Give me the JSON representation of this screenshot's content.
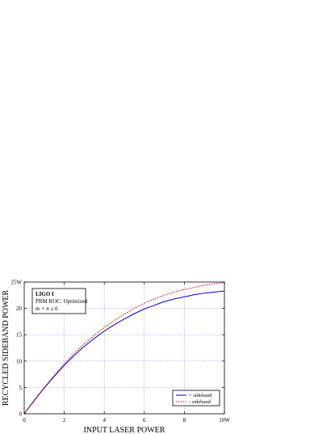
{
  "chart_data": {
    "type": "line",
    "xlabel": "INPUT LASER POWER",
    "ylabel": "RECYCLED SIDEBAND POWER",
    "xlim": [
      0,
      10
    ],
    "ylim": [
      0,
      25
    ],
    "x_ticks": [
      {
        "value": 0,
        "label": "0"
      },
      {
        "value": 2,
        "label": "2"
      },
      {
        "value": 4,
        "label": "4"
      },
      {
        "value": 6,
        "label": "6"
      },
      {
        "value": 8,
        "label": "8"
      },
      {
        "value": 10,
        "label": "10W"
      }
    ],
    "y_ticks": [
      {
        "value": 0,
        "label": "0"
      },
      {
        "value": 5,
        "label": "5"
      },
      {
        "value": 10,
        "label": "10"
      },
      {
        "value": 15,
        "label": "15"
      },
      {
        "value": 20,
        "label": "20"
      },
      {
        "value": 25,
        "label": "25W"
      }
    ],
    "grid": true,
    "legend_position": "bottom-right",
    "annotation": {
      "line1": "LIGO I",
      "line2": "PRM ROC: Optimized",
      "line3": "m + n ≤ 6"
    },
    "x": [
      0,
      0.5,
      1,
      1.5,
      2,
      2.5,
      3,
      3.5,
      4,
      4.5,
      5,
      5.5,
      6,
      6.5,
      7,
      7.5,
      8,
      8.5,
      9,
      9.5,
      10
    ],
    "series": [
      {
        "name": "+ sideband",
        "color": "#0000cc",
        "style": "solid",
        "values": [
          0,
          2.5,
          4.9,
          7.1,
          9.2,
          11.1,
          12.8,
          14.3,
          15.7,
          16.9,
          18.0,
          19.0,
          19.9,
          20.6,
          21.3,
          21.8,
          22.2,
          22.6,
          22.9,
          23.1,
          23.3
        ]
      },
      {
        "name": "- sideband",
        "color": "#cc0000",
        "style": "dotted",
        "values": [
          0,
          2.6,
          5.0,
          7.3,
          9.5,
          11.5,
          13.3,
          14.9,
          16.4,
          17.7,
          18.9,
          20.0,
          21.0,
          21.8,
          22.5,
          23.1,
          23.6,
          24.0,
          24.4,
          24.7,
          24.9
        ]
      }
    ]
  }
}
